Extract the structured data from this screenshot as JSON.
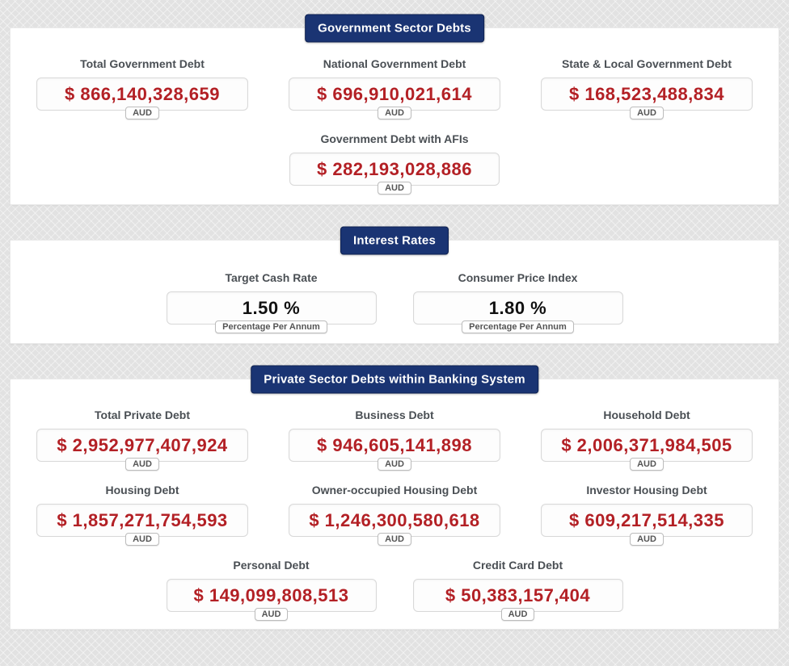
{
  "colors": {
    "badge_navy": "#1a3473",
    "value_red": "#b32025",
    "label_gray": "#4a4f54",
    "page_background": "#e2e2e2"
  },
  "sections": [
    {
      "title": "Government Sector Debts",
      "cards": [
        {
          "label": "Total Government Debt",
          "value": "$ 866,140,328,659",
          "unit": "AUD"
        },
        {
          "label": "National Government Debt",
          "value": "$ 696,910,021,614",
          "unit": "AUD"
        },
        {
          "label": "State & Local Government Debt",
          "value": "$ 168,523,488,834",
          "unit": "AUD"
        },
        {
          "label": "Government Debt with AFIs",
          "value": "$ 282,193,028,886",
          "unit": "AUD"
        }
      ]
    },
    {
      "title": "Interest Rates",
      "cards": [
        {
          "label": "Target Cash Rate",
          "value": "1.50 %",
          "unit": "Percentage Per Annum"
        },
        {
          "label": "Consumer Price Index",
          "value": "1.80 %",
          "unit": "Percentage Per Annum"
        }
      ]
    },
    {
      "title": "Private Sector Debts within Banking System",
      "cards": [
        {
          "label": "Total Private Debt",
          "value": "$ 2,952,977,407,924",
          "unit": "AUD"
        },
        {
          "label": "Business Debt",
          "value": "$ 946,605,141,898",
          "unit": "AUD"
        },
        {
          "label": "Household Debt",
          "value": "$ 2,006,371,984,505",
          "unit": "AUD"
        },
        {
          "label": "Housing Debt",
          "value": "$ 1,857,271,754,593",
          "unit": "AUD"
        },
        {
          "label": "Owner-occupied Housing Debt",
          "value": "$ 1,246,300,580,618",
          "unit": "AUD"
        },
        {
          "label": "Investor Housing Debt",
          "value": "$ 609,217,514,335",
          "unit": "AUD"
        },
        {
          "label": "Personal Debt",
          "value": "$ 149,099,808,513",
          "unit": "AUD"
        },
        {
          "label": "Credit Card Debt",
          "value": "$ 50,383,157,404",
          "unit": "AUD"
        }
      ]
    }
  ]
}
